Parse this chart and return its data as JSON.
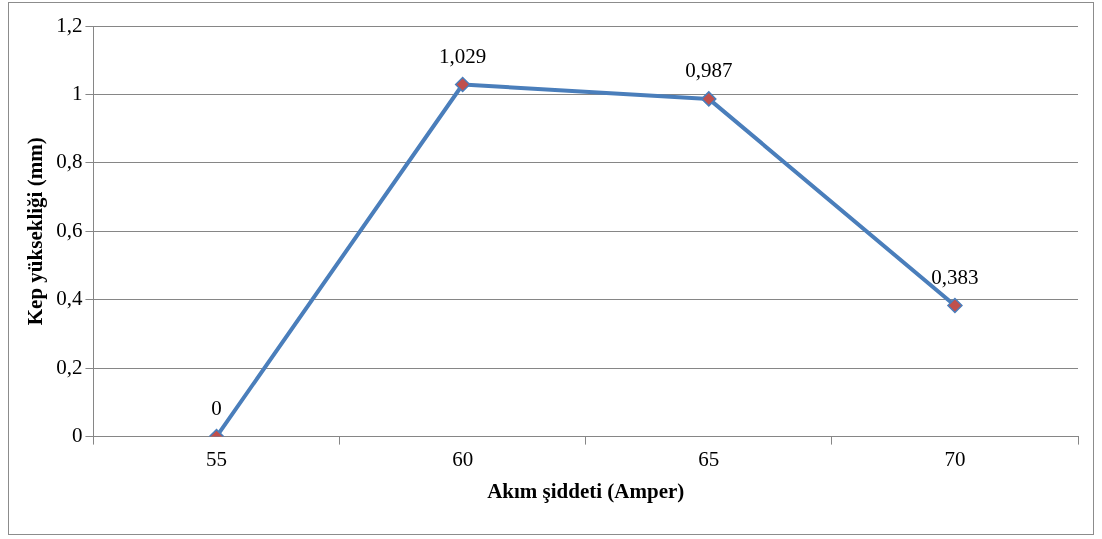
{
  "chart_data": {
    "type": "line",
    "xlabel": "Akım şiddeti (Amper)",
    "ylabel": "Kep yüksekliği (mm)",
    "categories": [
      "55",
      "60",
      "65",
      "70"
    ],
    "series": [
      {
        "color": "#4a7ebb",
        "colors": [
          "#c0504d",
          "#c0504d",
          "#c0504d",
          "#c0504d"
        ],
        "values": [
          0,
          1.029,
          0.987,
          0.383
        ],
        "value_labels": [
          "0",
          "1,029",
          "0,987",
          "0,383"
        ]
      }
    ],
    "ylim": [
      0,
      1.2
    ],
    "yticks": [
      0,
      {
        "value": 0.2,
        "label": "0,2"
      },
      {
        "value": 0.4,
        "label": "0,4"
      },
      {
        "value": 0.6,
        "label": "0,6"
      },
      {
        "value": 0.8,
        "label": "0,8"
      },
      1,
      {
        "value": 1.2,
        "label": "1,2"
      }
    ],
    "grid": "y",
    "legend": false,
    "marker": "diamond",
    "line_style": "solid"
  }
}
